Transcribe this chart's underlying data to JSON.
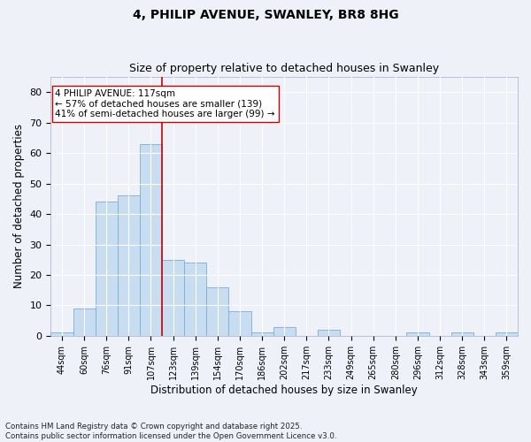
{
  "title1": "4, PHILIP AVENUE, SWANLEY, BR8 8HG",
  "title2": "Size of property relative to detached houses in Swanley",
  "xlabel": "Distribution of detached houses by size in Swanley",
  "ylabel": "Number of detached properties",
  "categories": [
    "44sqm",
    "60sqm",
    "76sqm",
    "91sqm",
    "107sqm",
    "123sqm",
    "139sqm",
    "154sqm",
    "170sqm",
    "186sqm",
    "202sqm",
    "217sqm",
    "233sqm",
    "249sqm",
    "265sqm",
    "280sqm",
    "296sqm",
    "312sqm",
    "328sqm",
    "343sqm",
    "359sqm"
  ],
  "values": [
    1,
    9,
    44,
    46,
    63,
    25,
    24,
    16,
    8,
    1,
    3,
    0,
    2,
    0,
    0,
    0,
    1,
    0,
    1,
    0,
    1
  ],
  "bar_color": "#c9ddf0",
  "bar_edge_color": "#7aadd4",
  "ylim": [
    0,
    85
  ],
  "yticks": [
    0,
    10,
    20,
    30,
    40,
    50,
    60,
    70,
    80
  ],
  "vline_x_index": 4.5,
  "vline_color": "#cc0000",
  "annotation_text": "4 PHILIP AVENUE: 117sqm\n← 57% of detached houses are smaller (139)\n41% of semi-detached houses are larger (99) →",
  "annotation_box_color": "#ffffff",
  "annotation_box_edge": "#cc0000",
  "footer": "Contains HM Land Registry data © Crown copyright and database right 2025.\nContains public sector information licensed under the Open Government Licence v3.0.",
  "bg_color": "#eef2f8",
  "grid_color": "#ffffff",
  "title_fontsize": 10,
  "subtitle_fontsize": 9,
  "tick_fontsize": 7,
  "xlabel_fontsize": 8.5,
  "ylabel_fontsize": 8.5,
  "annotation_fontsize": 7.5
}
